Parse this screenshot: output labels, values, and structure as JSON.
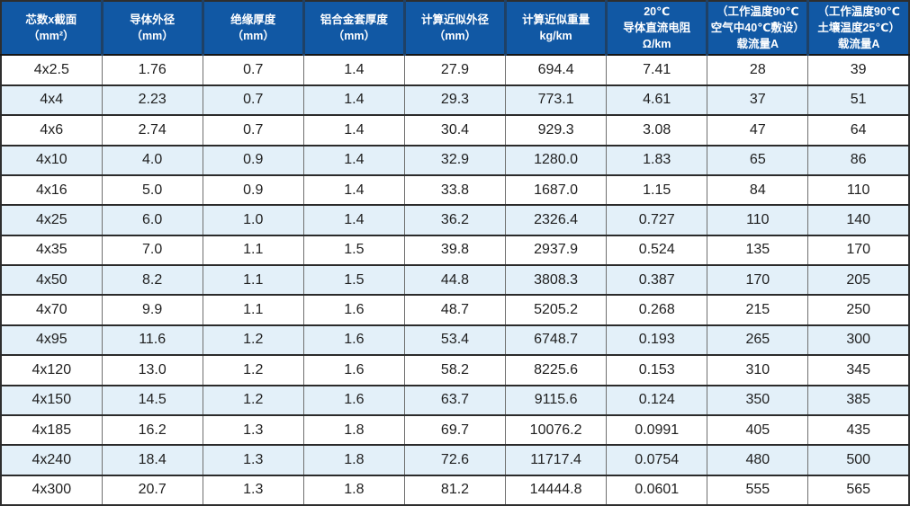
{
  "colors": {
    "header_bg": "#1158a4",
    "header_divider": "#1f4166",
    "header_text": "#ffffff",
    "row_bg": "#ffffff",
    "row_alt_bg": "#e3f0f9",
    "grid_horizontal": "#2b2b2b",
    "grid_vertical": "#6f6f6f",
    "cell_text": "#1f1f1f"
  },
  "table": {
    "columns": [
      {
        "id": "core-section",
        "lines": [
          "芯数x截面",
          "（mm²）"
        ]
      },
      {
        "id": "conductor-od",
        "lines": [
          "导体外径",
          "（mm）"
        ]
      },
      {
        "id": "insulation-thickness",
        "lines": [
          "绝缘厚度",
          "（mm）"
        ]
      },
      {
        "id": "alloy-sheath-thickness",
        "lines": [
          "铝合金套厚度",
          "（mm）"
        ]
      },
      {
        "id": "approx-od",
        "lines": [
          "计算近似外径",
          "（mm）"
        ]
      },
      {
        "id": "approx-weight",
        "lines": [
          "计算近似重量",
          "kg/km"
        ]
      },
      {
        "id": "dc-resistance-20c",
        "lines": [
          "20℃",
          "导体直流电阻",
          "Ω/km"
        ]
      },
      {
        "id": "ampacity-air",
        "lines": [
          "（工作温度90℃",
          "空气中40℃敷设）",
          "载流量A"
        ]
      },
      {
        "id": "ampacity-soil",
        "lines": [
          "（工作温度90℃",
          "土壤温度25℃）",
          "载流量A"
        ]
      }
    ],
    "rows": [
      [
        "4x2.5",
        "1.76",
        "0.7",
        "1.4",
        "27.9",
        "694.4",
        "7.41",
        "28",
        "39"
      ],
      [
        "4x4",
        "2.23",
        "0.7",
        "1.4",
        "29.3",
        "773.1",
        "4.61",
        "37",
        "51"
      ],
      [
        "4x6",
        "2.74",
        "0.7",
        "1.4",
        "30.4",
        "929.3",
        "3.08",
        "47",
        "64"
      ],
      [
        "4x10",
        "4.0",
        "0.9",
        "1.4",
        "32.9",
        "1280.0",
        "1.83",
        "65",
        "86"
      ],
      [
        "4x16",
        "5.0",
        "0.9",
        "1.4",
        "33.8",
        "1687.0",
        "1.15",
        "84",
        "110"
      ],
      [
        "4x25",
        "6.0",
        "1.0",
        "1.4",
        "36.2",
        "2326.4",
        "0.727",
        "110",
        "140"
      ],
      [
        "4x35",
        "7.0",
        "1.1",
        "1.5",
        "39.8",
        "2937.9",
        "0.524",
        "135",
        "170"
      ],
      [
        "4x50",
        "8.2",
        "1.1",
        "1.5",
        "44.8",
        "3808.3",
        "0.387",
        "170",
        "205"
      ],
      [
        "4x70",
        "9.9",
        "1.1",
        "1.6",
        "48.7",
        "5205.2",
        "0.268",
        "215",
        "250"
      ],
      [
        "4x95",
        "11.6",
        "1.2",
        "1.6",
        "53.4",
        "6748.7",
        "0.193",
        "265",
        "300"
      ],
      [
        "4x120",
        "13.0",
        "1.2",
        "1.6",
        "58.2",
        "8225.6",
        "0.153",
        "310",
        "345"
      ],
      [
        "4x150",
        "14.5",
        "1.2",
        "1.6",
        "63.7",
        "9115.6",
        "0.124",
        "350",
        "385"
      ],
      [
        "4x185",
        "16.2",
        "1.3",
        "1.8",
        "69.7",
        "10076.2",
        "0.0991",
        "405",
        "435"
      ],
      [
        "4x240",
        "18.4",
        "1.3",
        "1.8",
        "72.6",
        "11717.4",
        "0.0754",
        "480",
        "500"
      ],
      [
        "4x300",
        "20.7",
        "1.3",
        "1.8",
        "81.2",
        "14444.8",
        "0.0601",
        "555",
        "565"
      ]
    ]
  }
}
